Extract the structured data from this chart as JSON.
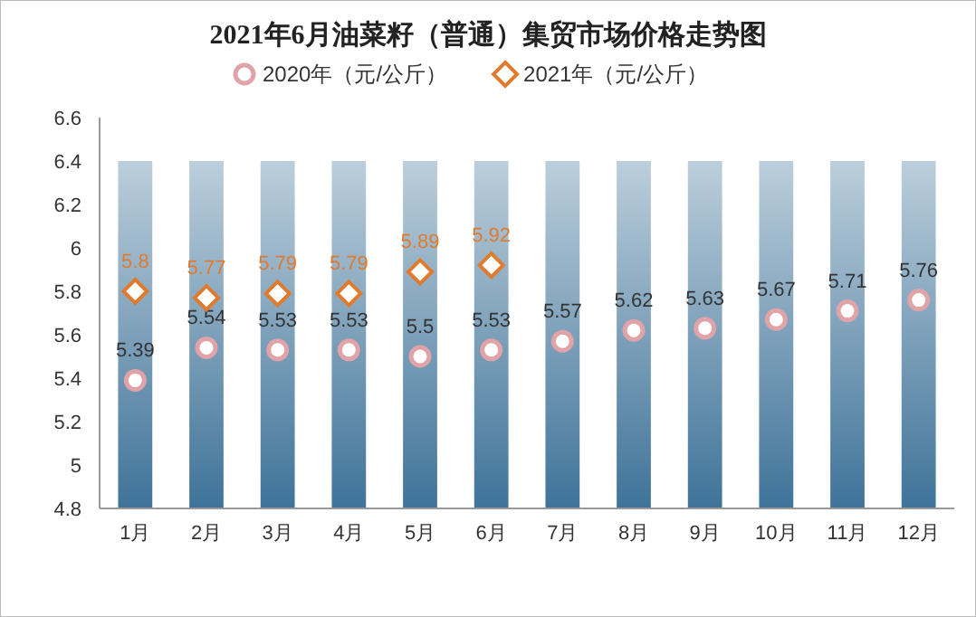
{
  "chart_data": {
    "type": "scatter",
    "title": "2021年6月油菜籽（普通）集贸市场价格走势图",
    "categories": [
      "1月",
      "2月",
      "3月",
      "4月",
      "5月",
      "6月",
      "7月",
      "8月",
      "9月",
      "10月",
      "11月",
      "12月"
    ],
    "ylim": [
      4.8,
      6.6
    ],
    "yticks": [
      4.8,
      5,
      5.2,
      5.4,
      5.6,
      5.8,
      6,
      6.2,
      6.4,
      6.6
    ],
    "grid": false,
    "legend": "top",
    "series": [
      {
        "type": "bar",
        "color": "#3f7399",
        "values": [
          6.4,
          6.4,
          6.4,
          6.4,
          6.4,
          6.4,
          6.4,
          6.4,
          6.4,
          6.4,
          6.4,
          6.4
        ]
      },
      {
        "name": "2020年（元/公斤）",
        "marker": "circle",
        "color": "#e0a3a8",
        "values": [
          5.39,
          5.54,
          5.53,
          5.53,
          5.5,
          5.53,
          5.57,
          5.62,
          5.63,
          5.67,
          5.71,
          5.76
        ],
        "value_labels": [
          "5.39",
          "5.54",
          "5.53",
          "5.53",
          "5.5",
          "5.53",
          "5.57",
          "5.62",
          "5.63",
          "5.67",
          "5.71",
          "5.76"
        ]
      },
      {
        "name": "2021年（元/公斤）",
        "marker": "diamond",
        "color": "#e07b2e",
        "values": [
          5.8,
          5.77,
          5.79,
          5.79,
          5.89,
          5.92,
          null,
          null,
          null,
          null,
          null,
          null
        ],
        "value_labels": [
          "5.8",
          "5.77",
          "5.79",
          "5.79",
          "5.89",
          "5.92",
          null,
          null,
          null,
          null,
          null,
          null
        ]
      }
    ]
  }
}
